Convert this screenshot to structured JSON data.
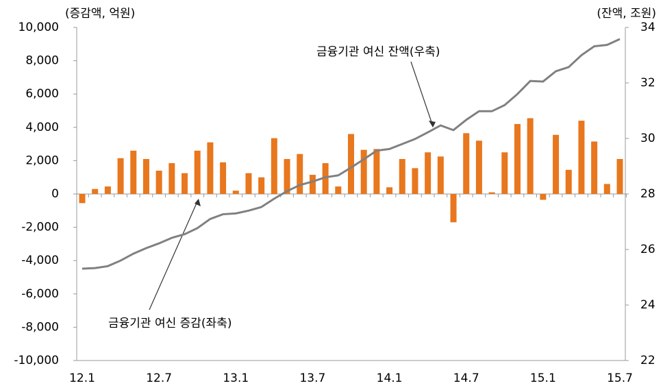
{
  "chart_data": {
    "type": "bar_line",
    "y_label": "(증감액, 억원)",
    "y2_label": "(잔액, 조원)",
    "categories": [
      "12.1",
      null,
      null,
      null,
      null,
      null,
      "12.7",
      null,
      null,
      null,
      null,
      null,
      "13.1",
      null,
      null,
      null,
      null,
      null,
      "13.7",
      null,
      null,
      null,
      null,
      null,
      "14.1",
      null,
      null,
      null,
      null,
      null,
      "14.7",
      null,
      null,
      null,
      null,
      null,
      "15.1",
      null,
      null,
      null,
      null,
      null,
      "15.7"
    ],
    "series": [
      {
        "name": "금융기관 여신 증감(좌축)",
        "type": "bar",
        "color": "#e8771e",
        "axis": "y",
        "values": [
          -550,
          300,
          450,
          2150,
          2600,
          2100,
          1400,
          1850,
          1250,
          2600,
          3100,
          1900,
          200,
          1250,
          1000,
          3350,
          2100,
          2400,
          1150,
          1850,
          450,
          3600,
          2650,
          2700,
          400,
          2100,
          1550,
          2500,
          2250,
          -1700,
          3650,
          3200,
          100,
          2500,
          4200,
          4550,
          -350,
          3550,
          1450,
          4400,
          3150,
          600,
          2100
        ]
      },
      {
        "name": "금융기관 여신 잔액(우축)",
        "type": "line",
        "color": "#808080",
        "axis": "y2",
        "values": [
          25.31,
          25.33,
          25.4,
          25.6,
          25.85,
          26.05,
          26.22,
          26.42,
          26.55,
          26.77,
          27.1,
          27.27,
          27.3,
          27.4,
          27.53,
          27.83,
          28.1,
          28.32,
          28.45,
          28.6,
          28.67,
          28.95,
          29.25,
          29.56,
          29.62,
          29.8,
          29.98,
          30.22,
          30.47,
          30.3,
          30.67,
          30.98,
          30.98,
          31.2,
          31.6,
          32.07,
          32.05,
          32.42,
          32.57,
          33.0,
          33.32,
          33.37,
          33.58
        ]
      }
    ],
    "ylim": [
      -10000,
      10000
    ],
    "yticks": [
      {
        "value": -10000,
        "label": "-10,000"
      },
      {
        "value": -8000,
        "label": "-8,000"
      },
      {
        "value": -6000,
        "label": "-6,000"
      },
      {
        "value": -4000,
        "label": "-4,000"
      },
      {
        "value": -2000,
        "label": "-2,000"
      },
      0,
      {
        "value": 2000,
        "label": "2,000"
      },
      {
        "value": 4000,
        "label": "4,000"
      },
      {
        "value": 6000,
        "label": "6,000"
      },
      {
        "value": 8000,
        "label": "8,000"
      },
      {
        "value": 10000,
        "label": "10,000"
      }
    ],
    "y2lim": [
      22,
      34
    ],
    "y2ticks": [
      22,
      24,
      26,
      28,
      30,
      32,
      34
    ],
    "grid": false
  }
}
